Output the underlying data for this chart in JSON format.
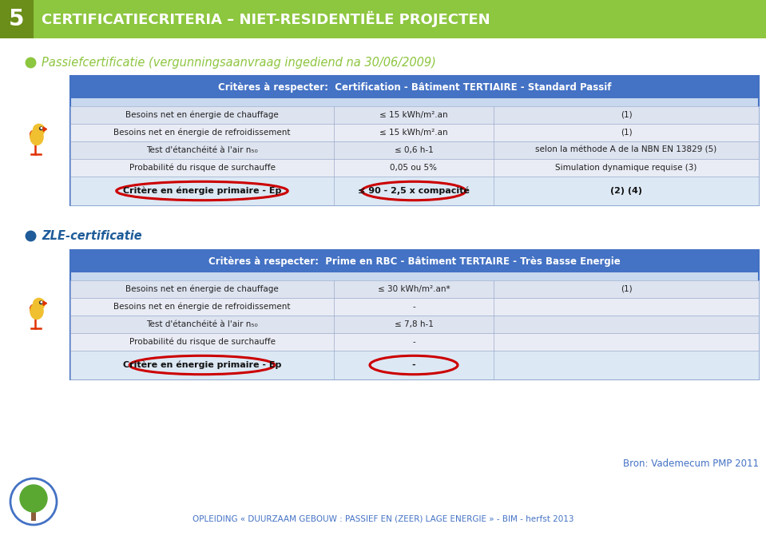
{
  "bg_color": "#ffffff",
  "header_bg": "#8dc63f",
  "header_num": "5",
  "header_text": "CERTIFICATIECRITERIA – NIET-RESIDENTIËLE PROJECTEN",
  "bullet1_text": "Passiefcertificatie (vergunningsaanvraag ingediend na 30/06/2009)",
  "bullet1_color": "#8dc63f",
  "table1_header_bg": "#4472c4",
  "table1_header_text": "Critères à respecter:  Certification - Bâtiment TERTIAIRE - Standard Passif",
  "table1_rows": [
    [
      "Besoins net en énergie de chauffage",
      "≤ 15 kWh/m².an",
      "(1)"
    ],
    [
      "Besoins net en énergie de refroidissement",
      "≤ 15 kWh/m².an",
      "(1)"
    ],
    [
      "Test d'étanchéité à l'air n₅₀",
      "≤ 0,6 h-1",
      "selon la méthode A de la NBN EN 13829 (5)"
    ],
    [
      "Probabilité du risque de surchauffe",
      "0,05 ou 5%",
      "Simulation dynamique requise (3)"
    ]
  ],
  "table1_highlight_row": [
    "Critère en énergie primaire - Ep",
    "≤ 90 - 2,5 x compacité",
    "(2) (4)"
  ],
  "table1_row_colors": [
    "#dde3ef",
    "#eaecf5",
    "#dde3ef",
    "#eaecf5"
  ],
  "table1_highlight_bg": "#dce8f4",
  "bullet2_text": "ZLE-certificatie",
  "bullet2_color": "#1f5c99",
  "table2_header_bg": "#4472c4",
  "table2_header_text": "Critères à respecter:  Prime en RBC - Bâtiment TERTAIRE - Très Basse Energie",
  "table2_rows": [
    [
      "Besoins net en énergie de chauffage",
      "≤ 30 kWh/m².an*",
      "(1)"
    ],
    [
      "Besoins net en énergie de refroidissement",
      "-",
      ""
    ],
    [
      "Test d'étanchéité à l'air n₅₀",
      "≤ 7,8 h-1",
      ""
    ],
    [
      "Probabilité du risque de surchauffe",
      "-",
      ""
    ]
  ],
  "table2_highlight_row": [
    "Critère en énergie primaire - Ep",
    "-",
    ""
  ],
  "table2_row_colors": [
    "#dde3ef",
    "#eaecf5",
    "#dde3ef",
    "#eaecf5"
  ],
  "table2_highlight_bg": "#dce8f4",
  "footer_source": "Bron: Vademecum PMP 2011",
  "footer_source_color": "#4472c4",
  "footer_text": "OPLEIDING « DUURZAAM GEBOUW : PASSIEF EN (ZEER) LAGE ENERGIE » - BIM - herfst 2013",
  "footer_text_color": "#4472c4",
  "oval_color": "#cc0000",
  "bird_body_color": "#f0c030",
  "bird_wing_color": "#e03000",
  "bird_eye_color": "#f0c030",
  "tree_circle_color": "#4472c4",
  "tree_foliage_color": "#5aa832",
  "tree_trunk_color": "#8B5e3c"
}
